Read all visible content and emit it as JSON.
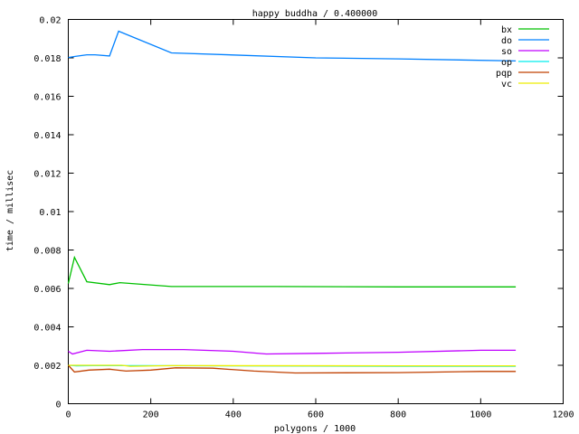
{
  "chart_data": {
    "type": "line",
    "title": "happy buddha / 0.400000",
    "xlabel": "polygons / 1000",
    "ylabel": "time / millisec",
    "xlim": [
      0,
      1200
    ],
    "ylim": [
      0,
      0.02
    ],
    "xticks": [
      0,
      200,
      400,
      600,
      800,
      1000,
      1200
    ],
    "xtick_labels": [
      "0",
      "200",
      "400",
      "600",
      "800",
      "1000",
      "1200"
    ],
    "yticks": [
      0,
      0.002,
      0.004,
      0.006,
      0.008,
      0.01,
      0.012,
      0.014,
      0.016,
      0.018,
      0.02
    ],
    "ytick_labels": [
      "0",
      "0.002",
      "0.004",
      "0.006",
      "0.008",
      "0.01",
      "0.012",
      "0.014",
      "0.016",
      "0.018",
      "0.02"
    ],
    "grid": false,
    "legend_position": "top-right",
    "series": [
      {
        "name": "bx",
        "color": "#00c000",
        "x": [
          0,
          15,
          45,
          100,
          125,
          250,
          500,
          800,
          1085
        ],
        "y": [
          0.00626,
          0.00762,
          0.00635,
          0.0062,
          0.0063,
          0.0061,
          0.0061,
          0.00608,
          0.00608
        ]
      },
      {
        "name": "do",
        "color": "#0080ff",
        "x": [
          0,
          15,
          45,
          65,
          100,
          122,
          250,
          400,
          600,
          800,
          1085
        ],
        "y": [
          0.01802,
          0.01807,
          0.01816,
          0.01816,
          0.0181,
          0.01939,
          0.01826,
          0.01815,
          0.018,
          0.01795,
          0.01784
        ]
      },
      {
        "name": "so",
        "color": "#c000ff",
        "x": [
          0,
          10,
          45,
          100,
          180,
          280,
          400,
          480,
          600,
          800,
          1000,
          1085
        ],
        "y": [
          0.00273,
          0.00259,
          0.00278,
          0.00273,
          0.00282,
          0.00282,
          0.00273,
          0.00259,
          0.00262,
          0.00268,
          0.00278,
          0.00278
        ]
      },
      {
        "name": "op",
        "color": "#00eeee",
        "x": [
          0,
          20,
          60,
          200,
          800,
          1085
        ],
        "y": [
          0.002,
          0.00197,
          0.00198,
          0.00198,
          0.00195,
          0.00195
        ]
      },
      {
        "name": "pqp",
        "color": "#c04000",
        "x": [
          0,
          15,
          50,
          100,
          140,
          200,
          260,
          350,
          450,
          550,
          800,
          1000,
          1085
        ],
        "y": [
          0.002,
          0.00165,
          0.00175,
          0.0018,
          0.0017,
          0.00175,
          0.00187,
          0.00185,
          0.0017,
          0.0016,
          0.00162,
          0.00168,
          0.00168
        ]
      },
      {
        "name": "vc",
        "color": "#eeee00",
        "x": [
          0,
          130,
          150,
          250,
          800,
          1085
        ],
        "y": [
          0.002,
          0.002,
          0.00195,
          0.00198,
          0.00197,
          0.00197
        ]
      }
    ]
  }
}
